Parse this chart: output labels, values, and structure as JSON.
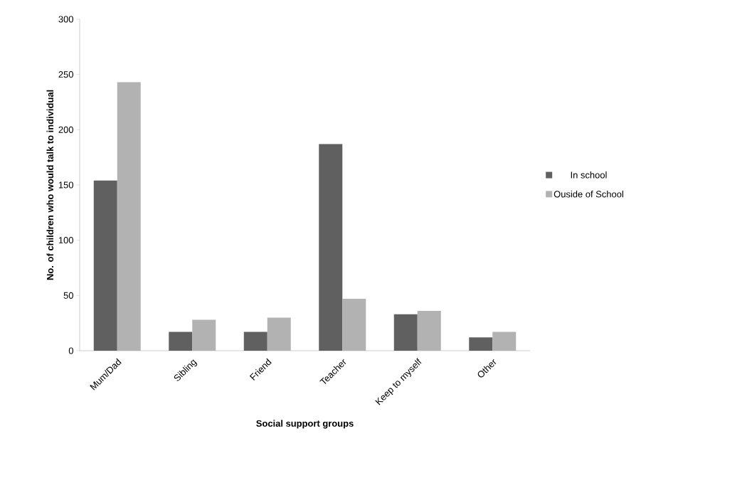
{
  "chart_data": {
    "type": "bar",
    "xlabel": "Social support groups",
    "ylabel": "No. of children who would talk to individual",
    "categories": [
      "Mum/Dad",
      "Sibling",
      "Friend",
      "Teacher",
      "Keep to myself",
      "Other"
    ],
    "series": [
      {
        "name": "In school",
        "color": "#606060",
        "values": [
          154,
          17,
          17,
          187,
          33,
          12
        ]
      },
      {
        "name": "Ouside of School",
        "color": "#b2b2b2",
        "values": [
          243,
          28,
          30,
          47,
          36,
          17
        ]
      }
    ],
    "ylim": [
      0,
      300
    ],
    "yticks": [
      0,
      50,
      100,
      150,
      200,
      250,
      300
    ],
    "grid": false,
    "legend": "right"
  }
}
